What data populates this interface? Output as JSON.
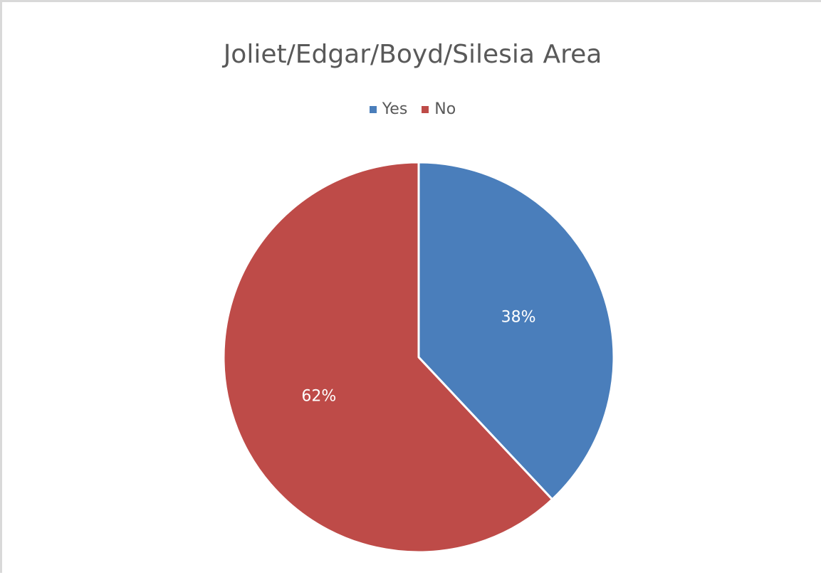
{
  "chart_data": {
    "type": "pie",
    "title": "Joliet/Edgar/Boyd/Silesia Area",
    "legend_position": "top",
    "slices": [
      {
        "name": "Yes",
        "value": 38,
        "label": "38%",
        "color": "#4a7ebb"
      },
      {
        "name": "No",
        "value": 62,
        "label": "62%",
        "color": "#be4b48"
      }
    ]
  }
}
